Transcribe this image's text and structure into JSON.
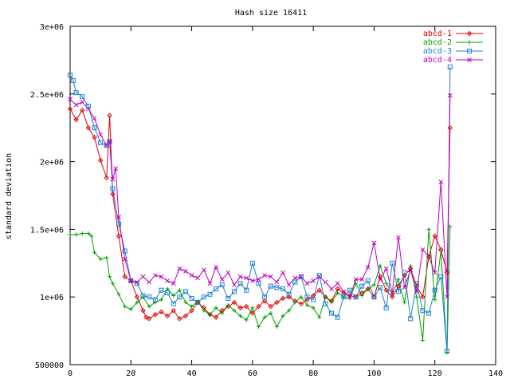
{
  "chart_data": {
    "type": "line",
    "title": "Hash size 16411",
    "xlabel": "",
    "ylabel": "standard deviation",
    "xlim": [
      0,
      140
    ],
    "ylim": [
      500000,
      3000000
    ],
    "x_ticks": [
      "0",
      "20",
      "40",
      "60",
      "80",
      "100",
      "120",
      "140"
    ],
    "y_ticks": [
      "500000",
      "1e+06",
      "1.5e+06",
      "2e+06",
      "2.5e+06",
      "3e+06"
    ],
    "legend": "top-right",
    "grid": false,
    "series": [
      {
        "name": "abcd-1",
        "color": "#e00000",
        "marker": "diamond",
        "x": [
          0,
          2,
          4,
          6,
          8,
          10,
          12,
          13,
          14,
          16,
          18,
          20,
          22,
          24,
          25,
          26,
          28,
          30,
          32,
          34,
          36,
          38,
          40,
          42,
          44,
          46,
          48,
          50,
          52,
          54,
          56,
          58,
          60,
          62,
          64,
          66,
          68,
          70,
          72,
          74,
          76,
          78,
          80,
          82,
          84,
          86,
          88,
          90,
          92,
          94,
          96,
          98,
          100,
          102,
          104,
          106,
          108,
          110,
          112,
          114,
          116,
          118,
          120,
          122,
          124,
          125
        ],
        "y": [
          2390000,
          2310000,
          2380000,
          2250000,
          2180000,
          2010000,
          1880000,
          2340000,
          1760000,
          1450000,
          1150000,
          1120000,
          1000000,
          900000,
          850000,
          840000,
          870000,
          890000,
          860000,
          900000,
          840000,
          860000,
          900000,
          960000,
          920000,
          870000,
          850000,
          900000,
          930000,
          960000,
          920000,
          930000,
          880000,
          930000,
          970000,
          930000,
          960000,
          990000,
          1000000,
          970000,
          950000,
          980000,
          1010000,
          1050000,
          1000000,
          970000,
          1060000,
          1030000,
          1010000,
          1000000,
          1030000,
          1060000,
          1000000,
          1150000,
          1050000,
          1000000,
          1080000,
          1160000,
          1210000,
          1080000,
          1000000,
          1300000,
          1450000,
          1350000,
          1180000,
          2250000
        ]
      },
      {
        "name": "abcd-2",
        "color": "#00a000",
        "marker": "plus",
        "x": [
          0,
          2,
          4,
          6,
          7,
          8,
          10,
          12,
          13,
          14,
          16,
          18,
          20,
          22,
          24,
          26,
          28,
          30,
          32,
          34,
          36,
          38,
          40,
          42,
          44,
          46,
          48,
          50,
          52,
          54,
          56,
          58,
          60,
          62,
          64,
          66,
          68,
          70,
          72,
          74,
          76,
          78,
          80,
          82,
          84,
          86,
          88,
          90,
          92,
          94,
          96,
          98,
          100,
          102,
          104,
          106,
          108,
          110,
          112,
          114,
          116,
          118,
          120,
          122,
          124,
          125
        ],
        "y": [
          1460000,
          1460000,
          1470000,
          1470000,
          1450000,
          1330000,
          1280000,
          1290000,
          1150000,
          1100000,
          1020000,
          930000,
          910000,
          960000,
          1000000,
          930000,
          960000,
          980000,
          1060000,
          1010000,
          1050000,
          960000,
          930000,
          970000,
          900000,
          870000,
          920000,
          880000,
          940000,
          900000,
          860000,
          830000,
          920000,
          780000,
          850000,
          880000,
          780000,
          860000,
          900000,
          960000,
          1000000,
          940000,
          920000,
          850000,
          1000000,
          960000,
          1030000,
          1000000,
          990000,
          1100000,
          1010000,
          1060000,
          1090000,
          1230000,
          1100000,
          1020000,
          1130000,
          960000,
          1230000,
          1000000,
          680000,
          1500000,
          980000,
          1340000,
          590000,
          1520000
        ]
      },
      {
        "name": "abcd-3",
        "color": "#1f7fd0",
        "marker": "square",
        "x": [
          0,
          1,
          2,
          4,
          6,
          8,
          10,
          12,
          13,
          14,
          16,
          18,
          20,
          22,
          24,
          26,
          28,
          30,
          32,
          34,
          36,
          38,
          40,
          42,
          44,
          46,
          48,
          50,
          52,
          54,
          56,
          58,
          60,
          62,
          64,
          66,
          68,
          70,
          72,
          74,
          76,
          78,
          80,
          82,
          84,
          86,
          88,
          90,
          92,
          94,
          96,
          98,
          100,
          102,
          104,
          106,
          108,
          110,
          112,
          114,
          116,
          118,
          120,
          122,
          124,
          125
        ],
        "y": [
          2640000,
          2600000,
          2510000,
          2480000,
          2410000,
          2250000,
          2140000,
          2120000,
          2150000,
          1800000,
          1540000,
          1340000,
          1120000,
          1100000,
          1010000,
          1000000,
          980000,
          1050000,
          1030000,
          950000,
          1000000,
          1040000,
          990000,
          960000,
          1000000,
          1020000,
          1060000,
          1090000,
          990000,
          1040000,
          1100000,
          1050000,
          1250000,
          1100000,
          1000000,
          1080000,
          1070000,
          1060000,
          1020000,
          1110000,
          1150000,
          1000000,
          980000,
          1160000,
          950000,
          880000,
          850000,
          1000000,
          1050000,
          1000000,
          1080000,
          1120000,
          1000000,
          1070000,
          920000,
          1250000,
          1040000,
          1180000,
          840000,
          1100000,
          900000,
          880000,
          1050000,
          1150000,
          600000,
          2700000
        ]
      },
      {
        "name": "abcd-4",
        "color": "#c000c0",
        "marker": "cross",
        "x": [
          0,
          2,
          4,
          6,
          8,
          10,
          12,
          13,
          14,
          15,
          16,
          18,
          20,
          22,
          24,
          26,
          28,
          30,
          32,
          34,
          36,
          38,
          40,
          42,
          44,
          46,
          48,
          50,
          52,
          54,
          56,
          58,
          60,
          62,
          64,
          66,
          68,
          70,
          72,
          74,
          76,
          78,
          80,
          82,
          84,
          86,
          88,
          90,
          92,
          94,
          96,
          98,
          100,
          102,
          104,
          106,
          108,
          110,
          112,
          114,
          116,
          118,
          120,
          122,
          124,
          125
        ],
        "y": [
          2460000,
          2420000,
          2440000,
          2390000,
          2320000,
          2200000,
          2120000,
          2150000,
          1870000,
          1950000,
          1590000,
          1280000,
          1120000,
          1110000,
          1150000,
          1110000,
          1160000,
          1150000,
          1120000,
          1100000,
          1210000,
          1190000,
          1160000,
          1140000,
          1200000,
          1100000,
          1220000,
          1130000,
          1180000,
          1090000,
          1150000,
          1140000,
          1120000,
          1130000,
          1160000,
          1150000,
          1110000,
          1180000,
          1090000,
          1140000,
          1150000,
          1100000,
          1120000,
          1150000,
          1110000,
          1060000,
          1100000,
          1040000,
          1000000,
          1130000,
          1130000,
          1220000,
          1400000,
          1130000,
          1210000,
          1030000,
          1440000,
          1070000,
          1200000,
          1040000,
          1350000,
          1300000,
          1180000,
          1850000,
          1000000,
          2490000
        ]
      }
    ]
  }
}
